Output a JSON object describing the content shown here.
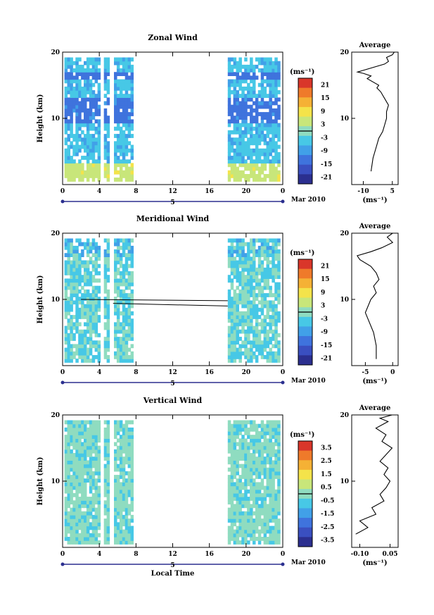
{
  "colorscale": [
    "#2b2f8f",
    "#3a4fc0",
    "#3f73dd",
    "#41a0e8",
    "#47c8e6",
    "#8fdcc0",
    "#c8e67a",
    "#f4e34a",
    "#f5b135",
    "#ef7a2a",
    "#d9362a"
  ],
  "date_label": "Mar 2010",
  "day_label": "5",
  "xlabel": "Local Time",
  "ylabel": "Height (km)",
  "chart_data": [
    {
      "type": "heatmap",
      "title": "Zonal Wind",
      "ylabel": "Height (km)",
      "xticks": [
        "0",
        "4",
        "8",
        "12",
        "16",
        "20",
        "0"
      ],
      "yticks": [
        "10",
        "20"
      ],
      "xlim": [
        0,
        24
      ],
      "ylim": [
        0,
        20
      ],
      "data_gaps_hours": [
        [
          7.5,
          18.0
        ]
      ],
      "colorbar": {
        "unit": "(ms⁻¹)",
        "ticks": [
          "21",
          "15",
          "9",
          "3",
          "-3",
          "-9",
          "-15",
          "-21"
        ],
        "range": [
          -24,
          24
        ]
      },
      "profile": {
        "title": "Average",
        "xlabel": "(ms⁻¹)",
        "xticks": [
          "-10",
          "5"
        ],
        "xlim": [
          -16,
          8
        ],
        "points": [
          [
            -6,
            2
          ],
          [
            -5,
            4
          ],
          [
            -3,
            6
          ],
          [
            -2,
            7
          ],
          [
            0,
            8
          ],
          [
            1,
            9
          ],
          [
            2,
            10
          ],
          [
            2,
            11
          ],
          [
            3,
            12
          ],
          [
            1,
            13
          ],
          [
            -1,
            14
          ],
          [
            -3,
            14.6
          ],
          [
            -2,
            15
          ],
          [
            -8,
            16
          ],
          [
            -6,
            16.4
          ],
          [
            -10,
            16.8
          ],
          [
            -13,
            17
          ],
          [
            1,
            18.2
          ],
          [
            3,
            18.6
          ],
          [
            2,
            19.2
          ],
          [
            5,
            19.6
          ],
          [
            6,
            20
          ]
        ]
      }
    },
    {
      "type": "heatmap",
      "title": "Meridional Wind",
      "ylabel": "Height (km)",
      "xticks": [
        "0",
        "4",
        "8",
        "12",
        "16",
        "20",
        "0"
      ],
      "yticks": [
        "10",
        "20"
      ],
      "xlim": [
        0,
        24
      ],
      "ylim": [
        0,
        20
      ],
      "data_gaps_hours": [
        [
          7.5,
          18.0
        ]
      ],
      "colorbar": {
        "unit": "(ms⁻¹)",
        "ticks": [
          "21",
          "15",
          "9",
          "3",
          "-3",
          "-9",
          "-15",
          "-21"
        ],
        "range": [
          -24,
          24
        ]
      },
      "profile": {
        "title": "Average",
        "xlabel": "(ms⁻¹)",
        "xticks": [
          "-5",
          "0"
        ],
        "xlim": [
          -7.5,
          1
        ],
        "points": [
          [
            -3,
            1
          ],
          [
            -3,
            3
          ],
          [
            -3.5,
            5
          ],
          [
            -4.5,
            7
          ],
          [
            -5,
            8
          ],
          [
            -4,
            10
          ],
          [
            -3,
            11
          ],
          [
            -3.5,
            12
          ],
          [
            -2.5,
            13
          ],
          [
            -3,
            14
          ],
          [
            -4,
            15
          ],
          [
            -6,
            16
          ],
          [
            -6.5,
            16.6
          ],
          [
            -4,
            17.2
          ],
          [
            -2,
            17.8
          ],
          [
            0,
            18.6
          ],
          [
            -1,
            19.4
          ],
          [
            0,
            20
          ]
        ]
      }
    },
    {
      "type": "heatmap",
      "title": "Vertical Wind",
      "ylabel": "Height (km)",
      "xlabel": "Local Time",
      "xticks": [
        "0",
        "4",
        "8",
        "12",
        "16",
        "20",
        "0"
      ],
      "yticks": [
        "10",
        "20"
      ],
      "xlim": [
        0,
        24
      ],
      "ylim": [
        0,
        20
      ],
      "data_gaps_hours": [
        [
          7.5,
          18.0
        ]
      ],
      "colorbar": {
        "unit": "(ms⁻¹)",
        "ticks": [
          "3.5",
          "2.5",
          "1.5",
          "0.5",
          "-0.5",
          "-1.5",
          "-2.5",
          "-3.5"
        ],
        "range": [
          -4,
          4
        ]
      },
      "profile": {
        "title": "Average",
        "xlabel": "(ms⁻¹)",
        "xticks": [
          "-0.10",
          "0.05"
        ],
        "xlim": [
          -0.14,
          0.09
        ],
        "points": [
          [
            -0.12,
            2
          ],
          [
            -0.06,
            3
          ],
          [
            -0.1,
            4
          ],
          [
            -0.02,
            5
          ],
          [
            -0.04,
            6
          ],
          [
            0.02,
            7
          ],
          [
            0.0,
            8
          ],
          [
            0.03,
            9
          ],
          [
            0.05,
            10
          ],
          [
            0.02,
            11
          ],
          [
            0.04,
            12
          ],
          [
            0.0,
            13
          ],
          [
            0.03,
            14
          ],
          [
            0.06,
            15
          ],
          [
            0.01,
            16
          ],
          [
            0.03,
            17
          ],
          [
            -0.02,
            18
          ],
          [
            0.04,
            19
          ],
          [
            0.0,
            19.5
          ],
          [
            0.06,
            20
          ]
        ]
      }
    }
  ]
}
